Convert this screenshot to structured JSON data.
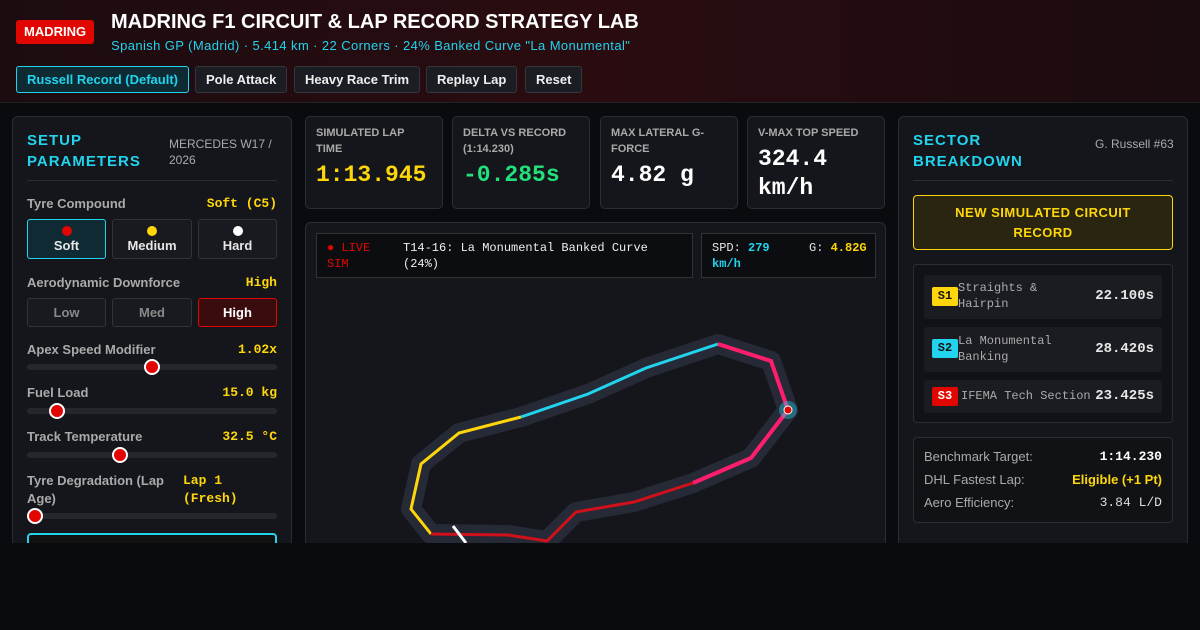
{
  "header": {
    "badge": "MADRING",
    "title": "MADRING F1 CIRCUIT & LAP RECORD STRATEGY LAB",
    "subtitle": "Spanish GP (Madrid) · 5.414 km · 22 Corners · 24% Banked Curve \"La Monumental\""
  },
  "presets": [
    "Russell Record (Default)",
    "Pole Attack",
    "Heavy Race Trim",
    "Replay Lap",
    "Reset"
  ],
  "setup": {
    "title": "SETUP PARAMETERS",
    "car": "MERCEDES W17 / 2026",
    "tyre": {
      "label": "Tyre Compound",
      "value": "Soft (C5)",
      "options": [
        "Soft",
        "Medium",
        "Hard"
      ]
    },
    "aero": {
      "label": "Aerodynamic Downforce",
      "value": "High",
      "options": [
        "Low",
        "Med",
        "High"
      ]
    },
    "sliders": [
      {
        "label": "Apex Speed Modifier",
        "value": "1.02x"
      },
      {
        "label": "Fuel Load",
        "value": "15.0 kg"
      },
      {
        "label": "Track Temperature",
        "value": "32.5 °C"
      },
      {
        "label": "Tyre Degradation (Lap Age)",
        "value": "Lap 1 (Fresh)"
      }
    ]
  },
  "metrics": [
    {
      "label": "SIMULATED LAP TIME",
      "value": "1:13.945"
    },
    {
      "label": "DELTA VS RECORD (1:14.230)",
      "value": "-0.285s"
    },
    {
      "label": "MAX LATERAL G-FORCE",
      "value": "4.82 g"
    },
    {
      "label": "V-MAX TOP SPEED",
      "value": "324.4 km/h"
    }
  ],
  "map": {
    "live": "● LIVE SIM",
    "corner": "T14-16: La Monumental Banked Curve (24%)",
    "spd_label": "SPD:",
    "spd": "279 km/h",
    "g_label": "G:",
    "g": "4.82G"
  },
  "sectors": {
    "title": "SECTOR BREAKDOWN",
    "driver": "G. Russell #63",
    "banner": "NEW SIMULATED CIRCUIT RECORD",
    "rows": [
      {
        "tag": "S1",
        "name": "Straights & Hairpin",
        "time": "22.100s"
      },
      {
        "tag": "S2",
        "name": "La Monumental Banking",
        "time": "28.420s"
      },
      {
        "tag": "S3",
        "name": "IFEMA Tech Section",
        "time": "23.425s"
      }
    ],
    "stats": [
      {
        "label": "Benchmark Target:",
        "value": "1:14.230"
      },
      {
        "label": "DHL Fastest Lap:",
        "value": "Eligible (+1 Pt)"
      },
      {
        "label": "Aero Efficiency:",
        "value": "3.84 L/D"
      }
    ]
  }
}
